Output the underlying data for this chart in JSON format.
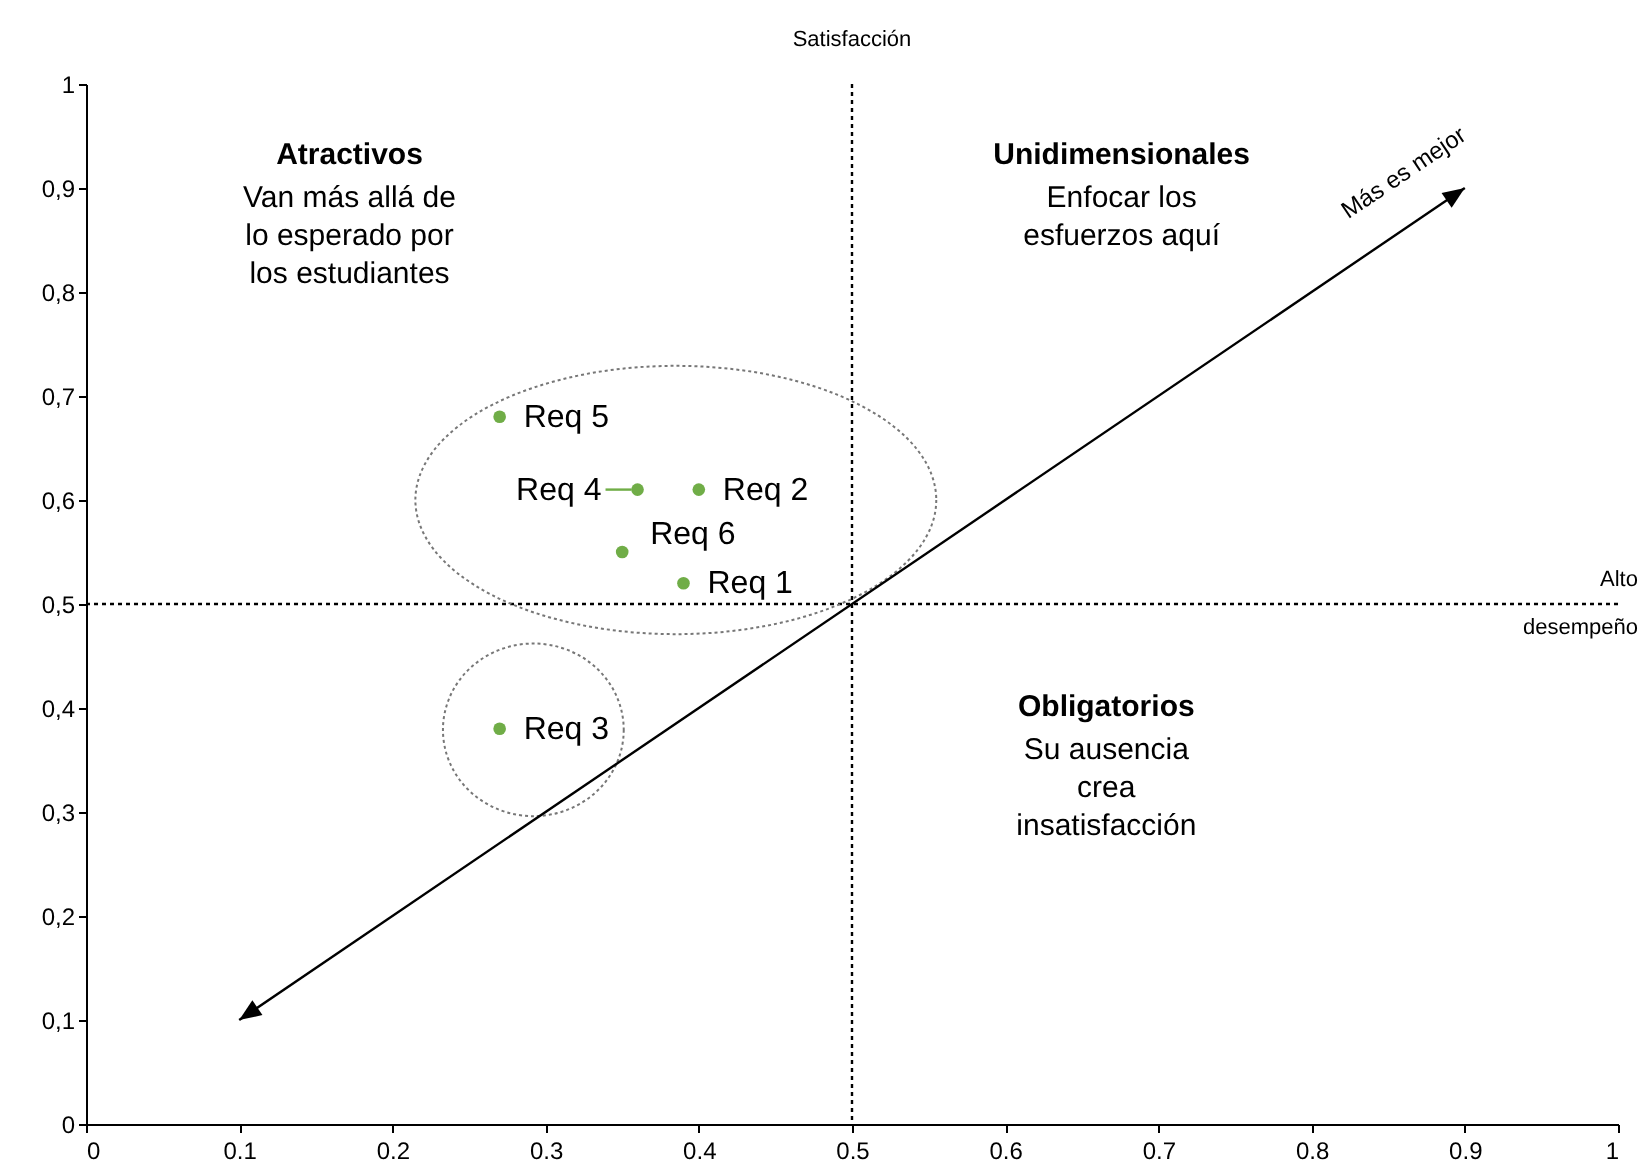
{
  "chart_data": {
    "type": "scatter",
    "xlim": [
      0,
      1
    ],
    "ylim": [
      0,
      1
    ],
    "xticks": [
      0,
      0.1,
      0.2,
      0.3,
      0.4,
      0.5,
      0.6,
      0.7,
      0.8,
      0.9,
      1
    ],
    "yticks": [
      0,
      {
        "value": 0.1,
        "label": "0,1"
      },
      {
        "value": 0.2,
        "label": "0,2"
      },
      {
        "value": 0.3,
        "label": "0,3"
      },
      {
        "value": 0.4,
        "label": "0,4"
      },
      {
        "value": 0.5,
        "label": "0,5"
      },
      {
        "value": 0.6,
        "label": "0,6"
      },
      {
        "value": 0.7,
        "label": "0,7"
      },
      {
        "value": 0.8,
        "label": "0,8"
      },
      {
        "value": 0.9,
        "label": "0,9"
      },
      1
    ],
    "marker": "circle",
    "series": [
      {
        "name": "Req 1",
        "color": "#70ad47",
        "x": [
          0.39
        ],
        "values": [
          0.52
        ]
      },
      {
        "name": "Req 2",
        "color": "#70ad47",
        "x": [
          0.4
        ],
        "values": [
          0.61
        ]
      },
      {
        "name": "Req 3",
        "color": "#70ad47",
        "x": [
          0.27
        ],
        "values": [
          0.38
        ]
      },
      {
        "name": "Req 4",
        "color": "#70ad47",
        "x": [
          0.36
        ],
        "values": [
          0.61
        ]
      },
      {
        "name": "Req 5",
        "color": "#70ad47",
        "x": [
          0.27
        ],
        "values": [
          0.68
        ]
      },
      {
        "name": "Req 6",
        "color": "#70ad47",
        "x": [
          0.35
        ],
        "values": [
          0.55
        ]
      }
    ],
    "ref_lines": [
      {
        "axis": "x",
        "value": 0.5,
        "label": "Satisfacción",
        "line_style": "dotted",
        "color": "#000000"
      },
      {
        "axis": "y",
        "value": 0.5,
        "label": "Alto\ndesempeño",
        "line_style": "dotted",
        "color": "#000000"
      }
    ],
    "annotations": [
      "Atractivos",
      "Van más allá de\nlo esperado por\nlos estudiantes",
      "Unidimensionales",
      "Enfocar los\nesfuerzos aquí",
      "Obligatorios",
      "Su ausencia\ncrea\ninsatisfacción",
      "Más es mejor"
    ]
  }
}
